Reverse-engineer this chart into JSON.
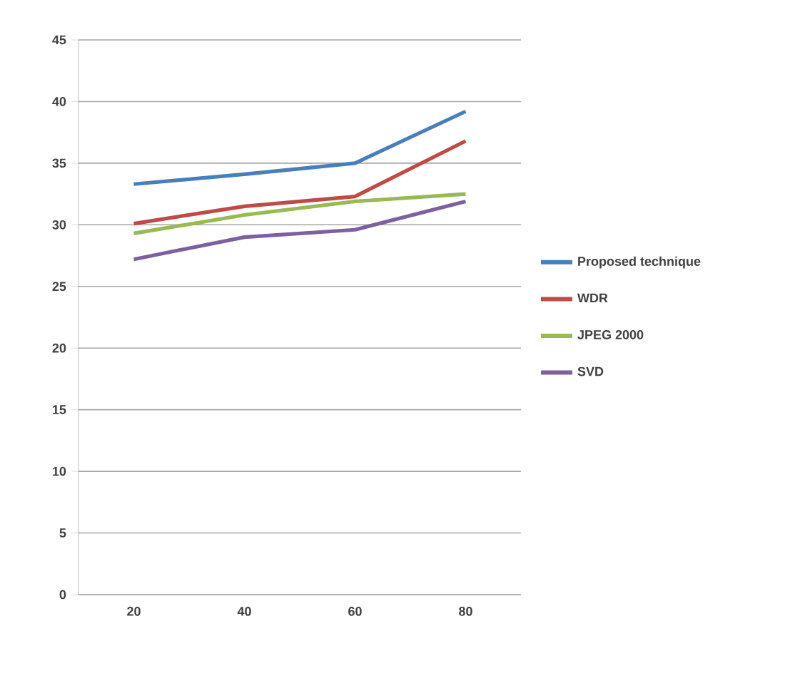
{
  "chart_data": {
    "type": "line",
    "categories": [
      "20",
      "40",
      "60",
      "80"
    ],
    "series": [
      {
        "name": "Proposed technique",
        "color": "#4a7ebb",
        "values": [
          33.3,
          34.1,
          35,
          39.2
        ]
      },
      {
        "name": "WDR",
        "color": "#be4b48",
        "values": [
          30.1,
          31.5,
          32.3,
          36.8
        ]
      },
      {
        "name": "JPEG 2000",
        "color": "#98b954",
        "values": [
          29.3,
          30.8,
          31.9,
          32.5
        ]
      },
      {
        "name": "SVD",
        "color": "#7d60a0",
        "values": [
          27.2,
          29,
          29.6,
          31.9
        ]
      }
    ],
    "ylim": [
      0,
      45
    ],
    "yticks": [
      0,
      5,
      10,
      15,
      20,
      25,
      30,
      35,
      40,
      45
    ],
    "grid": "y",
    "legend": "right",
    "marker": "none",
    "line_style": "solid"
  }
}
